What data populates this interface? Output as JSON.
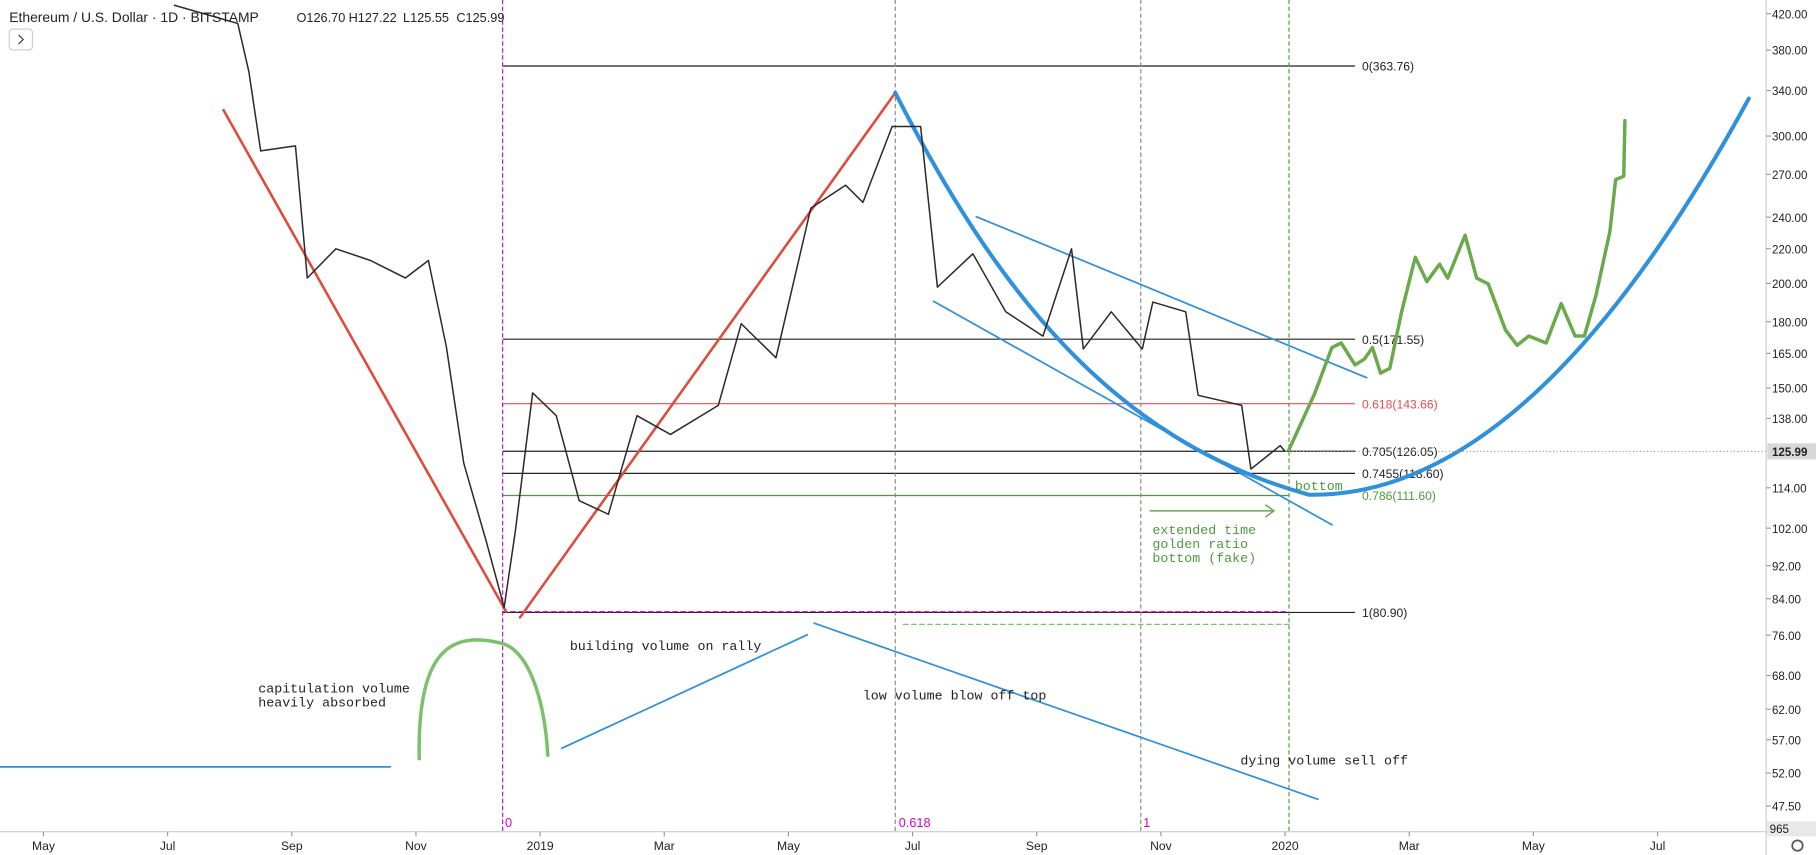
{
  "header": {
    "symbol": "Ethereum / U.S. Dollar · 1D · BITSTAMP",
    "open": "O126.70",
    "high": "H127.22",
    "low": "L125.55",
    "close": "C125.99"
  },
  "chart_data": {
    "type": "line",
    "log_scale": true,
    "color": "#2a2a2a",
    "x": [
      6.1,
      7.13,
      7.31,
      7.5,
      8.06,
      8.25,
      8.71,
      9.27,
      9.83,
      10.2,
      10.49,
      10.77,
      11.14,
      11.42,
      11.6,
      11.88,
      12.26,
      12.63,
      13.1,
      13.56,
      14.1,
      14.87,
      15.24,
      15.8,
      16.36,
      16.92,
      17.2,
      17.67,
      18.13,
      18.4,
      18.97,
      19.5,
      20.1,
      20.56,
      20.75,
      21.2,
      21.7,
      21.87,
      22.4,
      22.6,
      23.3,
      23.45,
      23.92,
      24.0
    ],
    "values": [
      430,
      409,
      358,
      288,
      292,
      203,
      220,
      213,
      203,
      213,
      168,
      122,
      98,
      82,
      101,
      148,
      139,
      110,
      106,
      139,
      132,
      143,
      179,
      163,
      246,
      262,
      250,
      308,
      308,
      198,
      217,
      185,
      173,
      220,
      167,
      185,
      167,
      190,
      185,
      147,
      143,
      120,
      128,
      125.99
    ],
    "xlim": [
      3.3,
      31.75
    ],
    "xticks": [
      {
        "value": 4,
        "label": "May"
      },
      {
        "value": 6,
        "label": "Jul"
      },
      {
        "value": 8,
        "label": "Sep"
      },
      {
        "value": 10,
        "label": "Nov"
      },
      {
        "value": 12,
        "label": "2019"
      },
      {
        "value": 14,
        "label": "Mar"
      },
      {
        "value": 16,
        "label": "May"
      },
      {
        "value": 18,
        "label": "Jul"
      },
      {
        "value": 20,
        "label": "Sep"
      },
      {
        "value": 22,
        "label": "Nov"
      },
      {
        "value": 24,
        "label": "2020"
      },
      {
        "value": 26,
        "label": "Mar"
      },
      {
        "value": 28,
        "label": "May"
      },
      {
        "value": 30,
        "label": "Jul"
      }
    ],
    "ylim": [
      45.4,
      436
    ],
    "yticks": [
      {
        "value": 420,
        "label": "420.00"
      },
      {
        "value": 380,
        "label": "380.00"
      },
      {
        "value": 340,
        "label": "340.00"
      },
      {
        "value": 300,
        "label": "300.00"
      },
      {
        "value": 270,
        "label": "270.00"
      },
      {
        "value": 240,
        "label": "240.00"
      },
      {
        "value": 220,
        "label": "220.00"
      },
      {
        "value": 200,
        "label": "200.00"
      },
      {
        "value": 180,
        "label": "180.00"
      },
      {
        "value": 165,
        "label": "165.00"
      },
      {
        "value": 150,
        "label": "150.00"
      },
      {
        "value": 138,
        "label": "138.00"
      },
      {
        "value": 114,
        "label": "114.00"
      },
      {
        "value": 102,
        "label": "102.00"
      },
      {
        "value": 92,
        "label": "92.00"
      },
      {
        "value": 84,
        "label": "84.00"
      },
      {
        "value": 76,
        "label": "76.00"
      },
      {
        "value": 68,
        "label": "68.00"
      },
      {
        "value": 62,
        "label": "62.00"
      },
      {
        "value": 57,
        "label": "57.00"
      },
      {
        "value": 52,
        "label": "52.00"
      },
      {
        "value": 47.5,
        "label": "47.50"
      }
    ],
    "last_price": {
      "value": 125.99,
      "label": "125.99"
    },
    "volume_label": "965",
    "fib_levels": [
      {
        "value": 363.76,
        "label": "0(363.76)",
        "color": "#222"
      },
      {
        "value": 171.55,
        "label": "0.5(171.55)",
        "color": "#222"
      },
      {
        "value": 143.66,
        "label": "0.618(143.66)",
        "color": "#e05050"
      },
      {
        "value": 126.05,
        "label": "0.705(126.05)",
        "color": "#222"
      },
      {
        "value": 118.6,
        "label": "0.7455(118.60)",
        "color": "#222"
      },
      {
        "value": 111.6,
        "label": "0.786(111.60)",
        "color": "#4c9a3c"
      },
      {
        "value": 80.9,
        "label": "1(80.90)",
        "color": "#222"
      }
    ],
    "time_markers": [
      "0",
      "0.618",
      "1"
    ],
    "annotations": [
      "capitulation volume",
      "heavily absorbed",
      "building volume on rally",
      "low volume blow off top",
      "dying volume sell off",
      "bottom",
      "extended time",
      "golden ratio",
      "bottom (fake)"
    ]
  }
}
